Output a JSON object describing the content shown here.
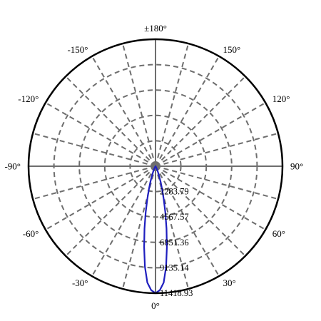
{
  "chart_data": {
    "type": "polar",
    "angle_labels": [
      {
        "deg": 180,
        "text": "±180°"
      },
      {
        "deg": 150,
        "text": "150°"
      },
      {
        "deg": 120,
        "text": "120°"
      },
      {
        "deg": 90,
        "text": "90°"
      },
      {
        "deg": 60,
        "text": "60°"
      },
      {
        "deg": 30,
        "text": "30°"
      },
      {
        "deg": 0,
        "text": "0°"
      },
      {
        "deg": -30,
        "text": "-30°"
      },
      {
        "deg": -60,
        "text": "-60°"
      },
      {
        "deg": -90,
        "text": "-90°"
      },
      {
        "deg": -120,
        "text": "-120°"
      },
      {
        "deg": -150,
        "text": "-150°"
      }
    ],
    "ring_labels": [
      "2283.79",
      "4567.57",
      "6851.36",
      "9135.14",
      "11418.93"
    ],
    "r_max": 11418.93,
    "angular_grid_step_deg": 15,
    "grid": true,
    "series": [
      {
        "color": "#1f1fbf",
        "points": [
          [
            0,
            11418.93
          ],
          [
            2,
            11150
          ],
          [
            4,
            10500
          ],
          [
            6,
            9100
          ],
          [
            8,
            7350
          ],
          [
            10,
            5700
          ],
          [
            12,
            4250
          ],
          [
            14,
            3050
          ],
          [
            16,
            2150
          ],
          [
            18,
            1500
          ],
          [
            20,
            1000
          ],
          [
            23,
            550
          ],
          [
            26,
            250
          ],
          [
            30,
            80
          ],
          [
            40,
            0
          ]
        ]
      }
    ]
  }
}
